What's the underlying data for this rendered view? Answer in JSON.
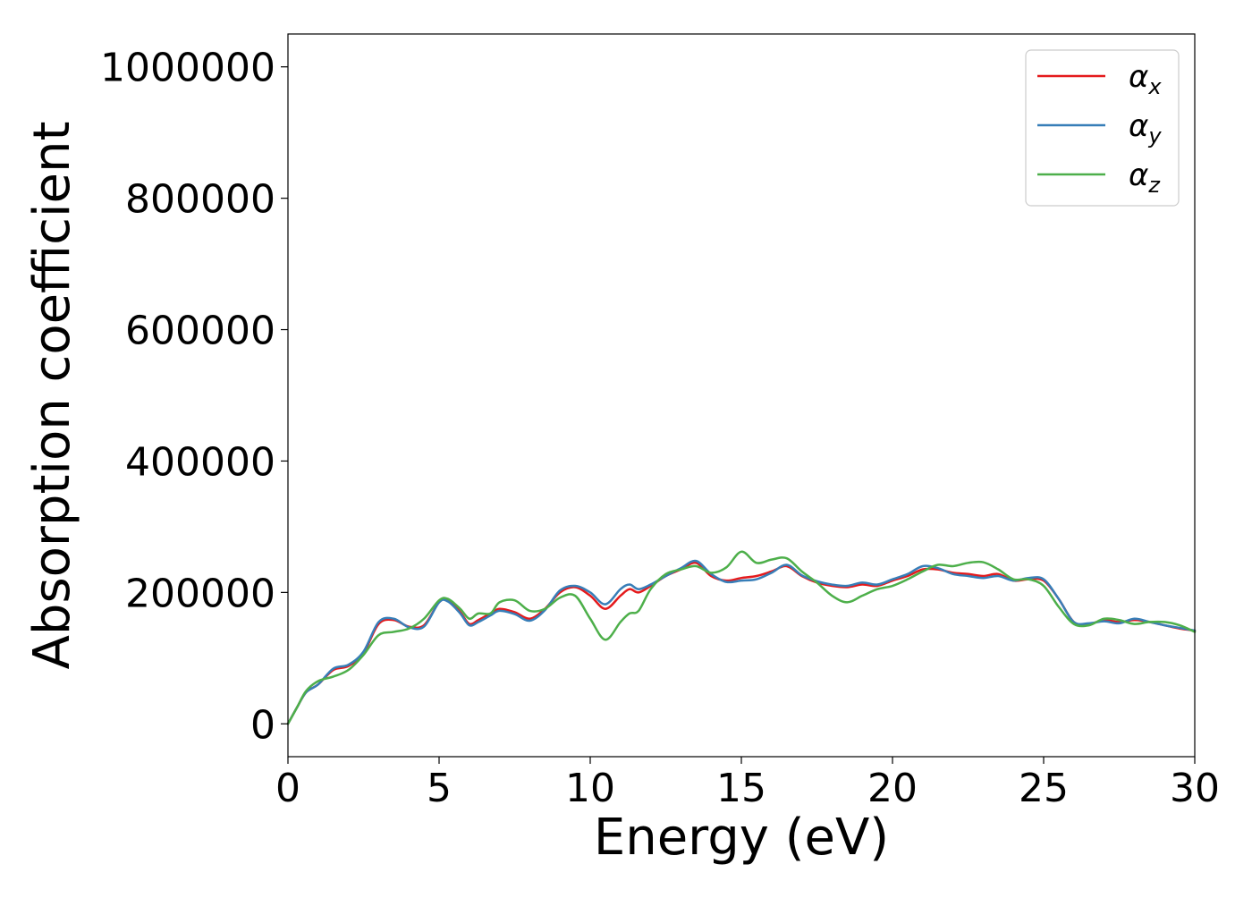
{
  "chart_data": {
    "type": "line",
    "title": "",
    "xlabel": "Energy (eV)",
    "ylabel": "Absorption coefficient",
    "xlim": [
      0,
      30
    ],
    "ylim": [
      -50000,
      1050000
    ],
    "xticks": [
      0,
      5,
      10,
      15,
      20,
      25,
      30
    ],
    "yticks": [
      0,
      200000,
      400000,
      600000,
      800000,
      1000000
    ],
    "xtick_labels": [
      "0",
      "5",
      "10",
      "15",
      "20",
      "25",
      "30"
    ],
    "ytick_labels": [
      "0",
      "200000",
      "400000",
      "600000",
      "800000",
      "1000000"
    ],
    "grid": false,
    "legend_position": "top-right",
    "series": [
      {
        "name": "α",
        "subscript": "x",
        "color": "#e41a1c",
        "x": [
          0,
          0.3,
          0.6,
          1.0,
          1.5,
          2.0,
          2.5,
          3.0,
          3.5,
          4.0,
          4.5,
          5.0,
          5.3,
          5.7,
          6.0,
          6.3,
          6.7,
          7.0,
          7.5,
          8.0,
          8.5,
          9.0,
          9.5,
          10.0,
          10.5,
          11.0,
          11.3,
          11.6,
          12.0,
          12.5,
          13.0,
          13.5,
          14.0,
          14.5,
          15.0,
          15.5,
          16.0,
          16.5,
          17.0,
          17.5,
          18.0,
          18.5,
          19.0,
          19.5,
          20.0,
          20.5,
          21.0,
          21.5,
          22.0,
          22.5,
          23.0,
          23.5,
          24.0,
          24.5,
          25.0,
          25.5,
          26.0,
          26.5,
          27.0,
          27.5,
          28.0,
          28.5,
          29.0,
          29.5,
          30.0
        ],
        "y": [
          0,
          25000,
          48000,
          60000,
          82000,
          88000,
          108000,
          152000,
          158000,
          148000,
          150000,
          185000,
          188000,
          170000,
          152000,
          158000,
          168000,
          175000,
          170000,
          160000,
          175000,
          200000,
          208000,
          195000,
          175000,
          195000,
          205000,
          200000,
          210000,
          225000,
          235000,
          245000,
          225000,
          218000,
          222000,
          225000,
          232000,
          240000,
          225000,
          215000,
          210000,
          208000,
          212000,
          210000,
          218000,
          225000,
          235000,
          235000,
          230000,
          228000,
          225000,
          228000,
          218000,
          220000,
          218000,
          190000,
          155000,
          152000,
          158000,
          155000,
          158000,
          155000,
          150000,
          145000,
          142000
        ]
      },
      {
        "name": "α",
        "subscript": "y",
        "color": "#377eb8",
        "x": [
          0,
          0.3,
          0.6,
          1.0,
          1.5,
          2.0,
          2.5,
          3.0,
          3.5,
          4.0,
          4.5,
          5.0,
          5.3,
          5.7,
          6.0,
          6.3,
          6.7,
          7.0,
          7.5,
          8.0,
          8.5,
          9.0,
          9.5,
          10.0,
          10.5,
          11.0,
          11.3,
          11.6,
          12.0,
          12.5,
          13.0,
          13.5,
          14.0,
          14.5,
          15.0,
          15.5,
          16.0,
          16.5,
          17.0,
          17.5,
          18.0,
          18.5,
          19.0,
          19.5,
          20.0,
          20.5,
          21.0,
          21.5,
          22.0,
          22.5,
          23.0,
          23.5,
          24.0,
          24.5,
          25.0,
          25.5,
          26.0,
          26.5,
          27.0,
          27.5,
          28.0,
          28.5,
          29.0,
          29.5,
          30.0
        ],
        "y": [
          0,
          25000,
          48000,
          60000,
          84000,
          90000,
          110000,
          155000,
          160000,
          147000,
          148000,
          185000,
          186000,
          168000,
          150000,
          155000,
          165000,
          172000,
          167000,
          157000,
          173000,
          203000,
          210000,
          200000,
          182000,
          205000,
          212000,
          205000,
          212000,
          225000,
          237000,
          248000,
          228000,
          216000,
          218000,
          220000,
          230000,
          242000,
          226000,
          217000,
          212000,
          210000,
          215000,
          212000,
          220000,
          228000,
          240000,
          237000,
          228000,
          225000,
          222000,
          225000,
          218000,
          222000,
          220000,
          190000,
          155000,
          153000,
          156000,
          153000,
          160000,
          155000,
          150000,
          146000,
          142000
        ]
      },
      {
        "name": "α",
        "subscript": "z",
        "color": "#4daf4a",
        "x": [
          0,
          0.3,
          0.6,
          1.0,
          1.5,
          2.0,
          2.5,
          3.0,
          3.5,
          4.0,
          4.5,
          5.0,
          5.3,
          5.7,
          6.0,
          6.3,
          6.7,
          7.0,
          7.5,
          8.0,
          8.5,
          9.0,
          9.5,
          10.0,
          10.5,
          11.0,
          11.3,
          11.6,
          12.0,
          12.5,
          13.0,
          13.5,
          14.0,
          14.5,
          15.0,
          15.5,
          16.0,
          16.5,
          17.0,
          17.5,
          18.0,
          18.5,
          19.0,
          19.5,
          20.0,
          20.5,
          21.0,
          21.5,
          22.0,
          22.5,
          23.0,
          23.5,
          24.0,
          24.5,
          25.0,
          25.5,
          26.0,
          26.5,
          27.0,
          27.5,
          28.0,
          28.5,
          29.0,
          29.5,
          30.0
        ],
        "y": [
          0,
          25000,
          50000,
          65000,
          72000,
          82000,
          105000,
          135000,
          140000,
          145000,
          160000,
          188000,
          190000,
          175000,
          160000,
          168000,
          168000,
          185000,
          188000,
          172000,
          175000,
          192000,
          195000,
          160000,
          128000,
          155000,
          168000,
          172000,
          205000,
          228000,
          235000,
          240000,
          230000,
          238000,
          262000,
          245000,
          250000,
          252000,
          232000,
          215000,
          195000,
          185000,
          195000,
          205000,
          210000,
          220000,
          232000,
          242000,
          240000,
          245000,
          246000,
          235000,
          220000,
          220000,
          210000,
          178000,
          152000,
          150000,
          160000,
          158000,
          152000,
          155000,
          155000,
          150000,
          140000
        ]
      }
    ]
  }
}
